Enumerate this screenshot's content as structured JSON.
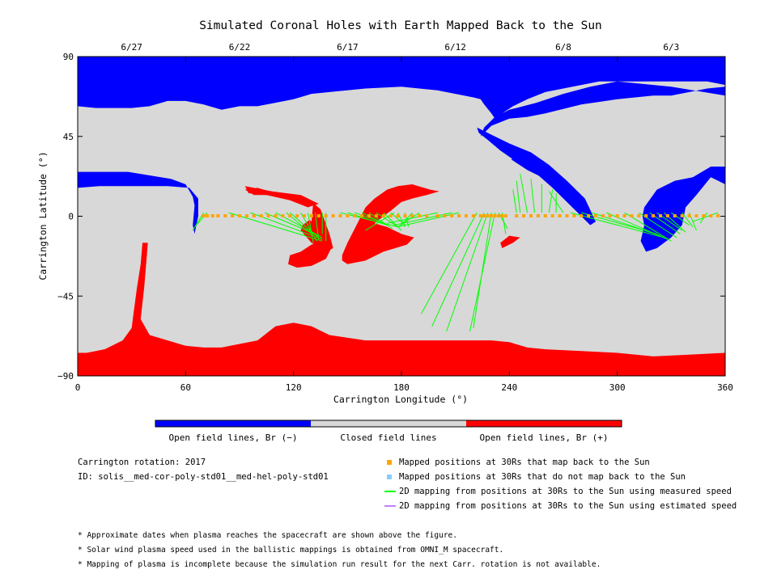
{
  "chart_data": {
    "type": "map",
    "title": "Simulated Coronal Holes with Earth Mapped Back to the Sun",
    "xlabel": "Carrington Longitude (°)",
    "ylabel": "Carrington Latitude (°)",
    "xlim": [
      0,
      360
    ],
    "ylim": [
      -90,
      90
    ],
    "xticks": [
      0,
      60,
      120,
      180,
      240,
      300,
      360
    ],
    "yticks": [
      -90,
      -45,
      0,
      45,
      90
    ],
    "top_dates": [
      {
        "label": "6/27",
        "lon": 30
      },
      {
        "label": "6/22",
        "lon": 90
      },
      {
        "label": "6/17",
        "lon": 150
      },
      {
        "label": "6/12",
        "lon": 210
      },
      {
        "label": "6/8",
        "lon": 270
      },
      {
        "label": "6/3",
        "lon": 330
      }
    ],
    "colors": {
      "open_negative": "#0000ff",
      "closed": "#d8d8d8",
      "open_positive": "#ff0000",
      "mapped_positions": "#ffa500",
      "unmapped_positions": "#87cefa",
      "measured_speed_line": "#00ff00",
      "estimated_speed_line": "#bf80ff"
    },
    "regions": {
      "negative_north_cap": [
        [
          0,
          90
        ],
        [
          360,
          90
        ],
        [
          360,
          68
        ],
        [
          330,
          73
        ],
        [
          300,
          76
        ],
        [
          285,
          73
        ],
        [
          270,
          69
        ],
        [
          255,
          64
        ],
        [
          240,
          60
        ],
        [
          232,
          56
        ],
        [
          226,
          50
        ],
        [
          224,
          45
        ],
        [
          230,
          51
        ],
        [
          240,
          55
        ],
        [
          250,
          56
        ],
        [
          260,
          58
        ],
        [
          280,
          63
        ],
        [
          300,
          66
        ],
        [
          320,
          68
        ],
        [
          330,
          68
        ],
        [
          340,
          70
        ],
        [
          350,
          72
        ],
        [
          360,
          73
        ],
        [
          360,
          90
        ],
        [
          0,
          90
        ],
        [
          0,
          62
        ],
        [
          10,
          61
        ],
        [
          20,
          61
        ],
        [
          30,
          61
        ],
        [
          40,
          62
        ],
        [
          50,
          65
        ],
        [
          60,
          65
        ],
        [
          70,
          63
        ],
        [
          80,
          60
        ],
        [
          90,
          62
        ],
        [
          100,
          62
        ],
        [
          110,
          64
        ],
        [
          120,
          66
        ],
        [
          130,
          69
        ],
        [
          140,
          70
        ],
        [
          160,
          72
        ],
        [
          180,
          73
        ],
        [
          200,
          71
        ],
        [
          220,
          67
        ],
        [
          224,
          66
        ],
        [
          226,
          63
        ],
        [
          230,
          58
        ],
        [
          232,
          55
        ],
        [
          236,
          58
        ],
        [
          242,
          62
        ],
        [
          250,
          66
        ],
        [
          260,
          70
        ],
        [
          270,
          72
        ],
        [
          280,
          74
        ],
        [
          290,
          76
        ],
        [
          300,
          76
        ],
        [
          310,
          76
        ],
        [
          320,
          76
        ],
        [
          330,
          76
        ],
        [
          340,
          76
        ],
        [
          350,
          76
        ],
        [
          360,
          74
        ],
        [
          360,
          90
        ]
      ],
      "negative_lanes": [
        [
          [
            0,
            25
          ],
          [
            15,
            25
          ],
          [
            28,
            25
          ],
          [
            40,
            23
          ],
          [
            52,
            21
          ],
          [
            60,
            18
          ],
          [
            64,
            11
          ],
          [
            65,
            6
          ],
          [
            64,
            -5
          ],
          [
            65,
            -10
          ],
          [
            67,
            0
          ],
          [
            67,
            10
          ],
          [
            62,
            16
          ],
          [
            50,
            17
          ],
          [
            38,
            17
          ],
          [
            25,
            17
          ],
          [
            12,
            17
          ],
          [
            0,
            16
          ]
        ],
        [
          [
            222,
            50
          ],
          [
            230,
            46
          ],
          [
            240,
            41
          ],
          [
            252,
            36
          ],
          [
            262,
            29
          ],
          [
            272,
            20
          ],
          [
            282,
            10
          ],
          [
            288,
            -3
          ],
          [
            285,
            -5
          ],
          [
            275,
            5
          ],
          [
            264,
            16
          ],
          [
            255,
            24
          ],
          [
            245,
            30
          ],
          [
            235,
            37
          ],
          [
            228,
            43
          ],
          [
            223,
            47
          ]
        ],
        [
          [
            241,
            32
          ],
          [
            250,
            26
          ],
          [
            260,
            21
          ],
          [
            264,
            20
          ],
          [
            258,
            25
          ],
          [
            249,
            30
          ],
          [
            243,
            33
          ]
        ],
        [
          [
            315,
            5
          ],
          [
            322,
            15
          ],
          [
            332,
            20
          ],
          [
            342,
            22
          ],
          [
            352,
            28
          ],
          [
            360,
            28
          ],
          [
            360,
            18
          ],
          [
            352,
            22
          ],
          [
            344,
            12
          ],
          [
            338,
            5
          ],
          [
            336,
            -5
          ],
          [
            330,
            -12
          ],
          [
            322,
            -18
          ],
          [
            316,
            -20
          ],
          [
            313,
            -14
          ],
          [
            315,
            -5
          ],
          [
            314,
            0
          ]
        ]
      ],
      "positive_south_cap": [
        [
          0,
          -90
        ],
        [
          360,
          -90
        ],
        [
          360,
          -77
        ],
        [
          340,
          -78
        ],
        [
          320,
          -79
        ],
        [
          300,
          -77
        ],
        [
          280,
          -76
        ],
        [
          260,
          -75
        ],
        [
          250,
          -74
        ],
        [
          240,
          -71
        ],
        [
          230,
          -70
        ],
        [
          220,
          -70
        ],
        [
          200,
          -70
        ],
        [
          180,
          -70
        ],
        [
          160,
          -70
        ],
        [
          140,
          -67
        ],
        [
          130,
          -62
        ],
        [
          120,
          -60
        ],
        [
          110,
          -62
        ],
        [
          100,
          -70
        ],
        [
          90,
          -72
        ],
        [
          80,
          -74
        ],
        [
          70,
          -74
        ],
        [
          60,
          -73
        ],
        [
          50,
          -70
        ],
        [
          40,
          -67
        ],
        [
          35,
          -58
        ],
        [
          37,
          -40
        ],
        [
          38,
          -28
        ],
        [
          39,
          -15
        ],
        [
          36,
          -15
        ],
        [
          35,
          -27
        ],
        [
          33,
          -40
        ],
        [
          31,
          -55
        ],
        [
          30,
          -63
        ],
        [
          25,
          -70
        ],
        [
          15,
          -75
        ],
        [
          5,
          -77
        ],
        [
          0,
          -77
        ]
      ],
      "positive_holes": [
        [
          [
            93,
            15
          ],
          [
            100,
            16
          ],
          [
            110,
            13
          ],
          [
            120,
            12
          ],
          [
            128,
            10
          ],
          [
            135,
            4
          ],
          [
            140,
            -10
          ],
          [
            142,
            -18
          ],
          [
            138,
            -20
          ],
          [
            130,
            -15
          ],
          [
            124,
            -8
          ],
          [
            125,
            -5
          ],
          [
            129,
            -2
          ],
          [
            130,
            -3
          ],
          [
            131,
            8
          ],
          [
            125,
            10
          ],
          [
            115,
            11
          ],
          [
            106,
            12
          ],
          [
            98,
            12
          ]
        ],
        [
          [
            118,
            -22
          ],
          [
            124,
            -20
          ],
          [
            130,
            -16
          ],
          [
            137,
            -14
          ],
          [
            141,
            -18
          ],
          [
            138,
            -24
          ],
          [
            130,
            -28
          ],
          [
            122,
            -29
          ],
          [
            117,
            -27
          ]
        ],
        [
          [
            147,
            -22
          ],
          [
            150,
            -15
          ],
          [
            156,
            -3
          ],
          [
            160,
            5
          ],
          [
            165,
            10
          ],
          [
            172,
            15
          ],
          [
            178,
            17
          ],
          [
            186,
            18
          ],
          [
            196,
            15
          ],
          [
            201,
            14
          ],
          [
            194,
            12
          ],
          [
            186,
            10
          ],
          [
            180,
            8
          ],
          [
            174,
            3
          ],
          [
            170,
            0
          ],
          [
            165,
            -4
          ],
          [
            172,
            -6
          ],
          [
            180,
            -10
          ],
          [
            187,
            -12
          ],
          [
            183,
            -16
          ],
          [
            170,
            -20
          ],
          [
            160,
            -25
          ],
          [
            150,
            -27
          ],
          [
            147,
            -25
          ]
        ],
        [
          [
            157,
            -8
          ],
          [
            162,
            -5
          ],
          [
            165,
            -10
          ],
          [
            160,
            -12
          ]
        ],
        [
          [
            235,
            -15
          ],
          [
            240,
            -11
          ],
          [
            246,
            -12
          ],
          [
            242,
            -15
          ],
          [
            236,
            -18
          ]
        ]
      ],
      "positive_upper_strip": [
        [
          93,
          17
        ],
        [
          108,
          14
        ],
        [
          124,
          12
        ],
        [
          134,
          7
        ],
        [
          128,
          5
        ],
        [
          118,
          9
        ],
        [
          105,
          12
        ],
        [
          95,
          13
        ]
      ]
    },
    "mapped_points_lon": [
      70,
      72,
      75,
      78,
      82,
      86,
      90,
      94,
      98,
      102,
      106,
      110,
      114,
      118,
      122,
      126,
      130,
      134,
      138,
      142,
      146,
      150,
      154,
      158,
      162,
      166,
      170,
      174,
      178,
      182,
      186,
      190,
      194,
      200,
      204,
      208,
      212,
      216,
      220,
      224,
      226,
      228,
      230,
      232,
      234,
      236,
      238,
      244,
      248,
      252,
      256,
      260,
      264,
      268,
      272,
      276,
      280,
      284,
      288,
      292,
      296,
      300,
      304,
      308,
      312,
      316,
      320,
      324,
      328,
      332,
      336,
      340,
      344,
      348,
      352,
      356
    ],
    "mapping_lines": [
      [
        70,
        2,
        64,
        -8
      ],
      [
        72,
        2,
        66,
        -5
      ],
      [
        84,
        2,
        136,
        -14
      ],
      [
        96,
        2,
        136,
        -13
      ],
      [
        110,
        2,
        136,
        -12
      ],
      [
        118,
        2,
        135,
        -13
      ],
      [
        124,
        2,
        133,
        -14
      ],
      [
        128,
        2,
        131,
        -15
      ],
      [
        132,
        2,
        134,
        -13
      ],
      [
        136,
        2,
        136,
        -10
      ],
      [
        138,
        2,
        138,
        -14
      ],
      [
        116,
        2,
        130,
        -10
      ],
      [
        104,
        2,
        134,
        -11
      ],
      [
        146,
        2,
        178,
        -6
      ],
      [
        150,
        2,
        172,
        -5
      ],
      [
        154,
        2,
        168,
        -3
      ],
      [
        158,
        2,
        170,
        -4
      ],
      [
        162,
        2,
        175,
        -7
      ],
      [
        166,
        2,
        178,
        -6
      ],
      [
        170,
        2,
        180,
        -8
      ],
      [
        174,
        2,
        182,
        -5
      ],
      [
        178,
        2,
        182,
        -6
      ],
      [
        182,
        2,
        184,
        -6
      ],
      [
        186,
        2,
        180,
        -5
      ],
      [
        190,
        2,
        178,
        -6
      ],
      [
        200,
        2,
        172,
        -4
      ],
      [
        208,
        2,
        176,
        -5
      ],
      [
        212,
        2,
        178,
        -6
      ],
      [
        176,
        2,
        160,
        -8
      ],
      [
        222,
        2,
        191,
        -55
      ],
      [
        226,
        2,
        197,
        -62
      ],
      [
        228,
        2,
        205,
        -65
      ],
      [
        230,
        2,
        220,
        -63
      ],
      [
        232,
        2,
        218,
        -65
      ],
      [
        234,
        2,
        239,
        -7
      ],
      [
        236,
        2,
        238,
        -10
      ],
      [
        244,
        2,
        242,
        15
      ],
      [
        246,
        2,
        244,
        20
      ],
      [
        250,
        2,
        246,
        24
      ],
      [
        254,
        2,
        252,
        21
      ],
      [
        258,
        2,
        258,
        18
      ],
      [
        262,
        2,
        264,
        15
      ],
      [
        266,
        2,
        266,
        13
      ],
      [
        270,
        2,
        262,
        14
      ],
      [
        274,
        2,
        326,
        -12
      ],
      [
        280,
        2,
        322,
        -10
      ],
      [
        286,
        2,
        324,
        -11
      ],
      [
        294,
        2,
        328,
        -13
      ],
      [
        304,
        2,
        330,
        -14
      ],
      [
        312,
        2,
        333,
        -12
      ],
      [
        318,
        2,
        335,
        -10
      ],
      [
        322,
        2,
        336,
        -8
      ],
      [
        326,
        2,
        338,
        -9
      ],
      [
        330,
        2,
        340,
        -5
      ],
      [
        336,
        2,
        342,
        -6
      ],
      [
        340,
        2,
        344,
        -8
      ],
      [
        350,
        2,
        346,
        -4
      ],
      [
        356,
        2,
        342,
        -3
      ]
    ]
  },
  "colorbar": {
    "labels": [
      "Open field lines, Br (−)",
      "Closed field lines",
      "Open field lines, Br (+)"
    ]
  },
  "info": {
    "rotation": "Carrington rotation: 2017",
    "id": "ID: solis__med-cor-poly-std01__med-hel-poly-std01"
  },
  "legend": [
    {
      "label": "Mapped positions at 30Rs that map back to the Sun",
      "kind": "square",
      "color": "#ffa500"
    },
    {
      "label": "Mapped positions at 30Rs that do not map back to the Sun",
      "kind": "square",
      "color": "#87cefa"
    },
    {
      "label": "2D mapping from positions at 30Rs to the Sun using measured speed",
      "kind": "line",
      "color": "#00ff00"
    },
    {
      "label": "2D mapping from positions at 30Rs to the Sun using estimated speed",
      "kind": "line",
      "color": "#bf80ff"
    }
  ],
  "notes": [
    "* Approximate dates when plasma reaches the spacecraft are shown above the figure.",
    "* Solar wind plasma speed used in the ballistic mappings is obtained from OMNI_M spacecraft.",
    "* Mapping of plasma is incomplete because the simulation run result for the next Carr. rotation is not available."
  ]
}
